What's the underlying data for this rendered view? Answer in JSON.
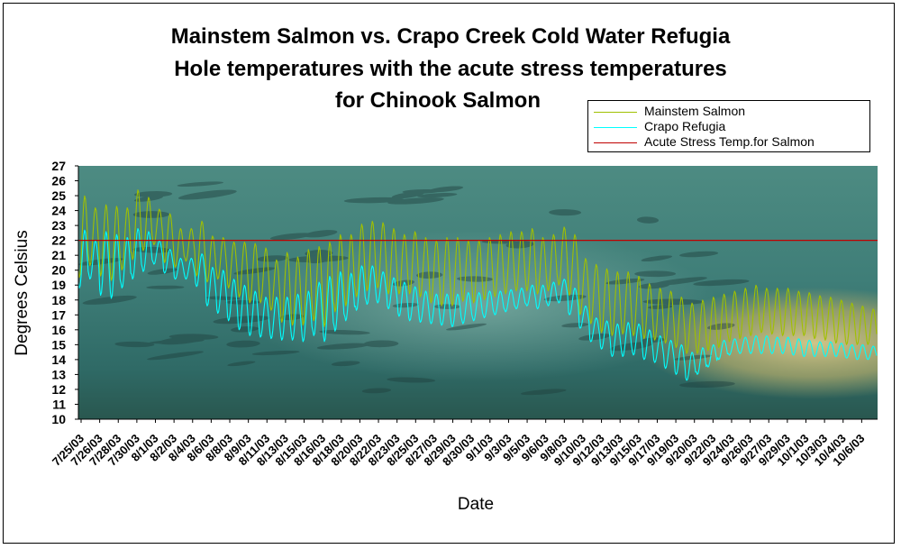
{
  "chart_data": {
    "type": "line",
    "title_lines": [
      "Mainstem Salmon vs. Crapo Creek Cold Water Refugia",
      "Hole temperatures with the acute stress temperatures",
      "for Chinook Salmon"
    ],
    "xlabel": "Date",
    "ylabel": "Degrees Celsius",
    "ylim": [
      10,
      27
    ],
    "yticks": [
      10,
      11,
      12,
      13,
      14,
      15,
      16,
      17,
      18,
      19,
      20,
      21,
      22,
      23,
      24,
      25,
      26,
      27
    ],
    "x_tick_labels": [
      "7/25/03",
      "7/26/03",
      "7/28/03",
      "7/30/03",
      "8/1/03",
      "8/2/03",
      "8/4/03",
      "8/6/03",
      "8/8/03",
      "8/9/03",
      "8/11/03",
      "8/13/03",
      "8/15/03",
      "8/16/03",
      "8/18/03",
      "8/20/03",
      "8/22/03",
      "8/23/03",
      "8/25/03",
      "8/27/03",
      "8/29/03",
      "8/30/03",
      "9/1/03",
      "9/3/03",
      "9/5/03",
      "9/6/03",
      "9/8/03",
      "9/10/03",
      "9/12/03",
      "9/13/03",
      "9/15/03",
      "9/17/03",
      "9/19/03",
      "9/20/03",
      "9/22/03",
      "9/24/03",
      "9/26/03",
      "9/27/03",
      "9/29/03",
      "10/1/03",
      "10/3/03",
      "10/4/03",
      "10/6/03"
    ],
    "x_start": "7/25/03",
    "x_end": "10/7/03",
    "legend_position": "top-right",
    "background": "photograph of salmon in river water",
    "series": [
      {
        "name": "Mainstem Salmon",
        "color": "#a0c000",
        "daily_min": [
          19.5,
          20.3,
          19.6,
          19.3,
          20.0,
          20.7,
          21.3,
          21.7,
          20.5,
          20.2,
          20.6,
          19.6,
          19.2,
          19.4,
          18.8,
          18.2,
          17.8,
          17.8,
          17.3,
          16.5,
          16.3,
          16.3,
          16.6,
          16.2,
          17.2,
          17.6,
          18.2,
          18.6,
          18.8,
          18.4,
          18.4,
          18.4,
          18.2,
          17.8,
          17.6,
          17.6,
          17.9,
          17.8,
          18.0,
          18.2,
          18.4,
          18.6,
          18.6,
          18.4,
          18.6,
          19.0,
          18.3,
          17.0,
          16.4,
          15.8,
          15.6,
          15.7,
          15.6,
          15.4,
          15.3,
          15.1,
          14.8,
          14.4,
          14.4,
          14.6,
          14.8,
          15.2,
          15.4,
          15.6,
          15.8,
          15.7,
          15.6,
          15.6,
          15.6,
          15.4,
          15.3,
          15.1,
          15.0,
          15.0,
          15.0
        ],
        "daily_max": [
          25.0,
          24.2,
          24.4,
          24.3,
          24.2,
          25.4,
          24.9,
          24.1,
          23.8,
          22.8,
          22.8,
          23.3,
          22.3,
          22.2,
          21.9,
          21.9,
          21.8,
          21.5,
          20.7,
          21.2,
          20.9,
          21.4,
          21.6,
          21.9,
          22.4,
          22.4,
          23.1,
          23.3,
          23.2,
          22.8,
          22.4,
          22.6,
          22.2,
          22.0,
          22.2,
          22.2,
          22.0,
          22.0,
          22.2,
          22.4,
          22.6,
          22.6,
          22.8,
          22.2,
          22.4,
          22.9,
          22.4,
          20.8,
          20.4,
          20.1,
          19.9,
          19.9,
          19.6,
          19.1,
          18.8,
          18.6,
          18.2,
          17.8,
          18.0,
          18.2,
          18.4,
          18.6,
          18.8,
          19.0,
          18.8,
          18.8,
          18.8,
          18.6,
          18.5,
          18.3,
          18.2,
          18.0,
          17.8,
          17.6,
          17.4
        ]
      },
      {
        "name": "Crapo Refugia",
        "color": "#00ffff",
        "daily_min": [
          18.8,
          19.4,
          18.3,
          18.1,
          18.8,
          19.4,
          19.9,
          20.4,
          19.8,
          19.4,
          19.4,
          18.9,
          17.6,
          17.1,
          16.6,
          16.0,
          15.6,
          15.5,
          15.4,
          15.3,
          15.3,
          15.2,
          15.6,
          15.2,
          15.9,
          16.6,
          17.3,
          17.7,
          17.8,
          17.4,
          16.9,
          16.6,
          16.5,
          16.4,
          16.3,
          16.2,
          16.4,
          16.6,
          16.8,
          17.0,
          17.2,
          17.4,
          17.6,
          17.4,
          17.6,
          17.8,
          17.0,
          16.1,
          15.2,
          14.7,
          14.2,
          14.2,
          14.3,
          14.0,
          13.8,
          13.4,
          13.0,
          12.6,
          13.0,
          13.5,
          14.0,
          14.3,
          14.4,
          14.4,
          14.4,
          14.4,
          14.4,
          14.3,
          14.2,
          14.2,
          14.2,
          14.2,
          14.1,
          14.0,
          14.0
        ],
        "daily_max": [
          22.7,
          22.0,
          22.6,
          22.4,
          22.2,
          22.8,
          22.6,
          22.0,
          21.4,
          20.8,
          20.8,
          21.1,
          20.2,
          20.0,
          19.4,
          19.0,
          18.6,
          18.2,
          18.2,
          18.2,
          18.4,
          18.6,
          19.2,
          19.6,
          19.9,
          19.8,
          20.3,
          20.3,
          19.9,
          19.5,
          19.2,
          18.9,
          18.6,
          18.4,
          18.4,
          18.4,
          18.5,
          18.5,
          18.6,
          18.6,
          18.7,
          18.8,
          19.0,
          19.0,
          19.2,
          19.4,
          18.8,
          17.6,
          16.8,
          16.6,
          16.4,
          16.5,
          16.4,
          16.0,
          15.6,
          15.3,
          15.0,
          14.5,
          14.8,
          15.0,
          15.3,
          15.4,
          15.5,
          15.6,
          15.6,
          15.5,
          15.5,
          15.4,
          15.3,
          15.2,
          15.2,
          15.1,
          15.0,
          15.0,
          14.9
        ]
      },
      {
        "name": "Acute Stress Temp.for Salmon",
        "color": "#c00000",
        "constant": 22
      }
    ]
  }
}
